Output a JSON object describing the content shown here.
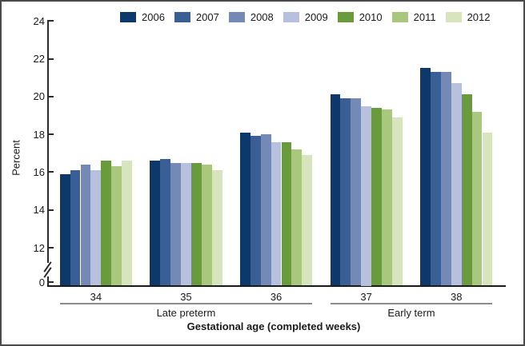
{
  "chart_data": {
    "type": "bar",
    "title": "",
    "ylabel": "Percent",
    "xlabel": "Gestational age (completed weeks)",
    "categories": [
      "34",
      "35",
      "36",
      "37",
      "38"
    ],
    "category_groups": [
      {
        "label": "Late preterm",
        "span": [
          0,
          2
        ]
      },
      {
        "label": "Early term",
        "span": [
          3,
          4
        ]
      }
    ],
    "y_ticks": [
      0,
      12,
      14,
      16,
      18,
      20,
      22,
      24
    ],
    "y_axis_break_between": [
      0,
      12
    ],
    "ylim": [
      0,
      24
    ],
    "grid": false,
    "legend_position": "top",
    "series": [
      {
        "name": "2006",
        "color": "#0d386b",
        "values": [
          15.9,
          16.6,
          18.1,
          20.1,
          21.5
        ]
      },
      {
        "name": "2007",
        "color": "#3a5e96",
        "values": [
          16.1,
          16.7,
          17.9,
          19.9,
          21.3
        ]
      },
      {
        "name": "2008",
        "color": "#7589b6",
        "values": [
          16.4,
          16.5,
          18.0,
          19.9,
          21.3
        ]
      },
      {
        "name": "2009",
        "color": "#b7c1dd",
        "values": [
          16.1,
          16.5,
          17.6,
          19.5,
          20.7
        ]
      },
      {
        "name": "2010",
        "color": "#699b3c",
        "values": [
          16.6,
          16.5,
          17.6,
          19.4,
          20.1
        ]
      },
      {
        "name": "2011",
        "color": "#a9c87d",
        "values": [
          16.3,
          16.4,
          17.2,
          19.3,
          19.2
        ]
      },
      {
        "name": "2012",
        "color": "#d6e5bd",
        "values": [
          16.6,
          16.1,
          16.9,
          18.9,
          18.1
        ]
      }
    ]
  }
}
